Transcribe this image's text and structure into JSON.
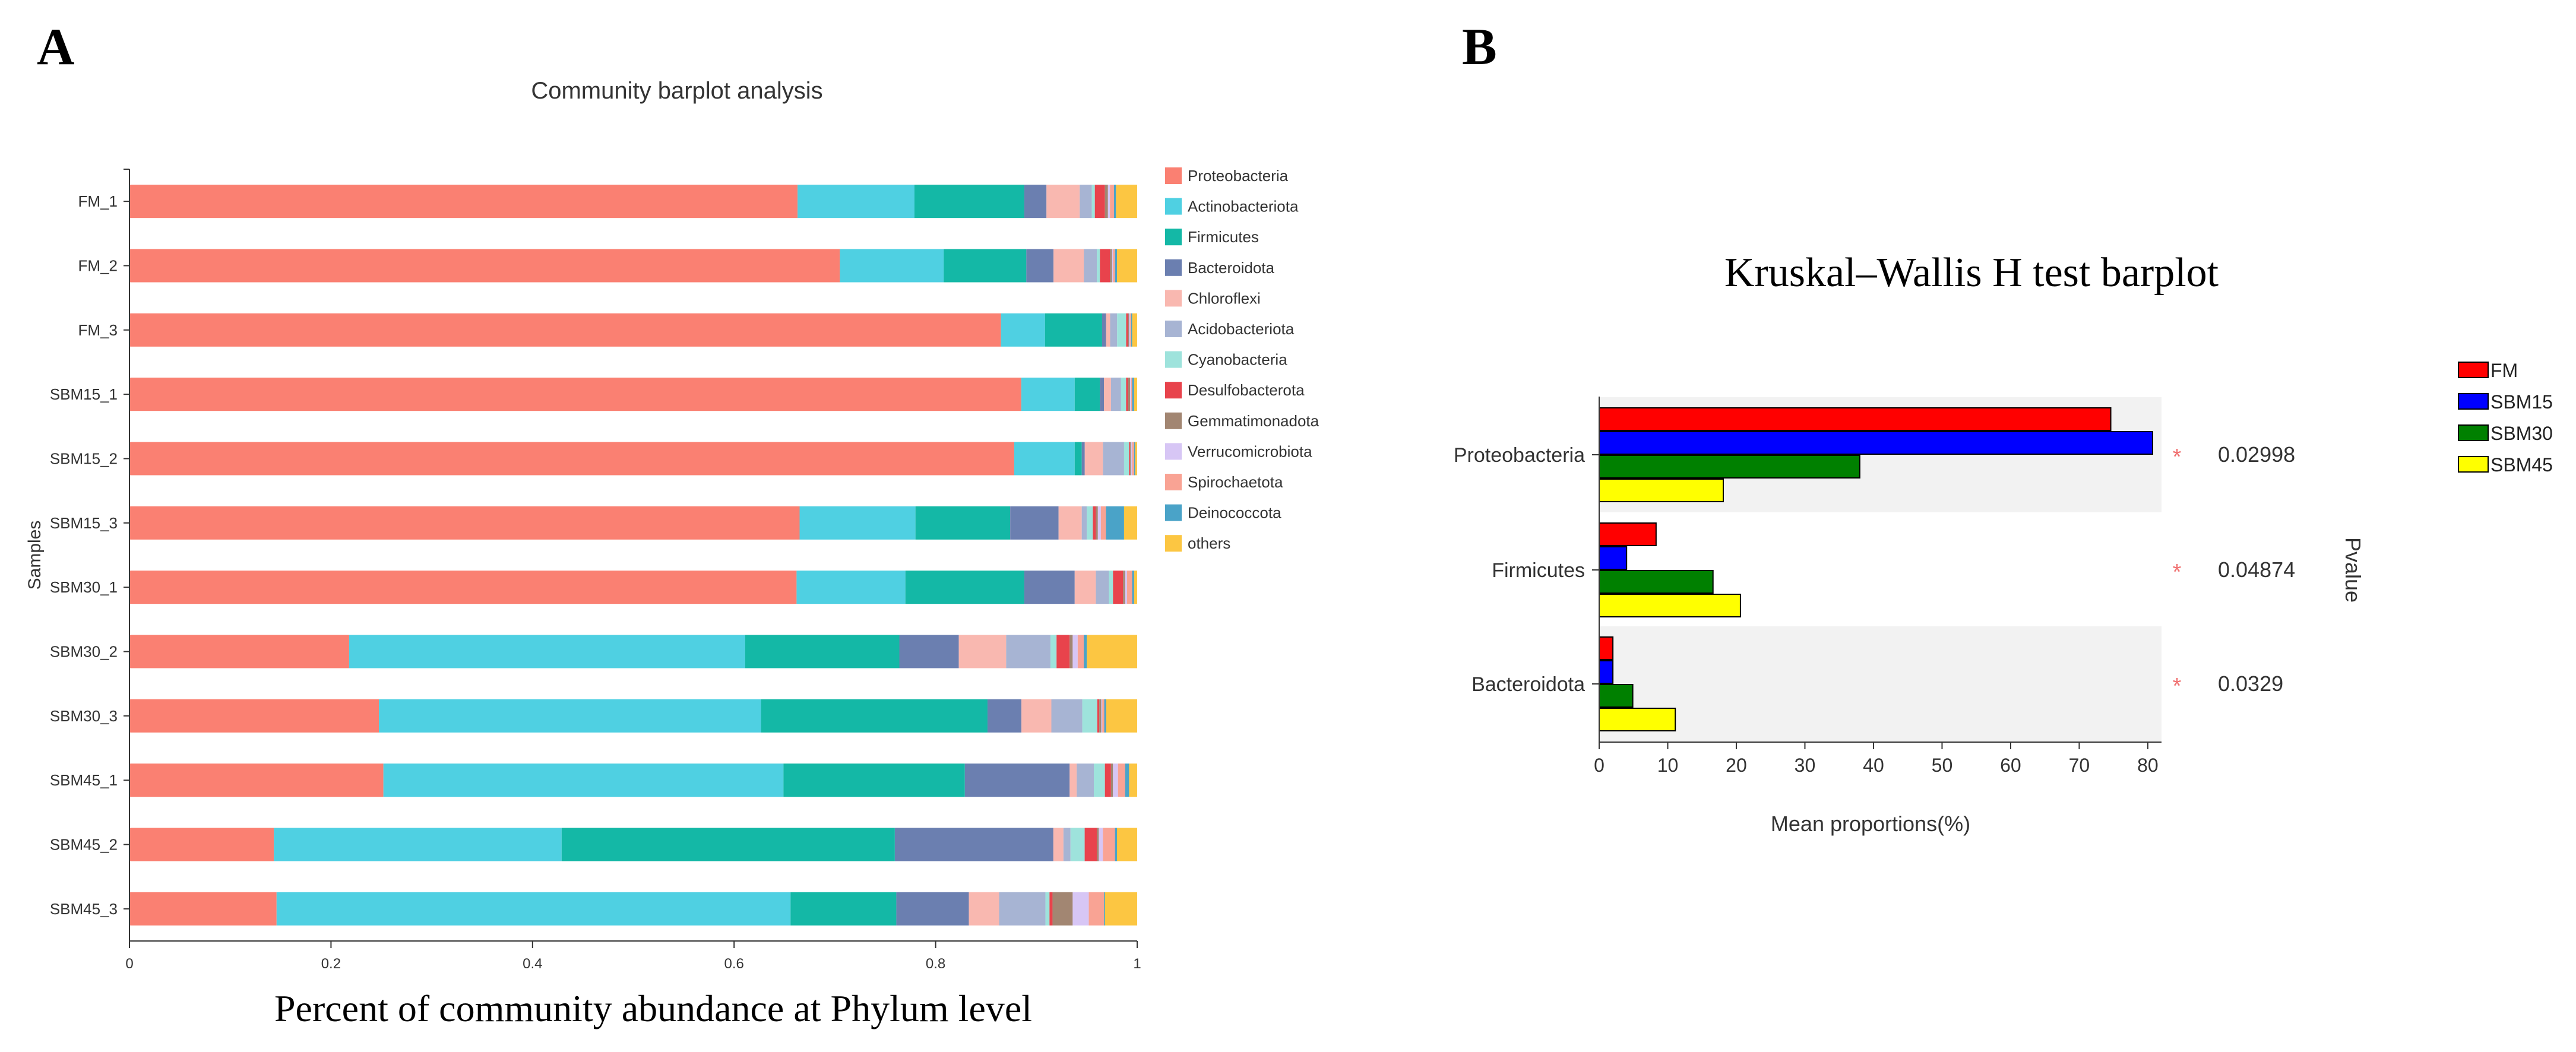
{
  "colors": {
    "Proteobacteria": "#fa8072",
    "Actinobacteriota": "#4fd0e2",
    "Firmicutes": "#14b8a6",
    "Bacteroidota": "#6b7fb0",
    "Chloroflexi": "#f9b8b0",
    "Acidobacteriota": "#a7b4d3",
    "Cyanobacteria": "#9ee3dc",
    "Desulfobacterota": "#e8434c",
    "Gemmatimonadota": "#a28672",
    "Verrucomicrobiota": "#d7c6f5",
    "Spirochaetota": "#f9a394",
    "Deinococcota": "#4aa3c8",
    "others": "#fcc642",
    "FM": "#ff0000",
    "SBM15": "#0000ff",
    "SBM30": "#008000",
    "SBM45": "#ffff00",
    "star": "#f07070"
  },
  "chart_data": [
    {
      "panel_label": "A",
      "type": "bar",
      "orientation": "horizontal",
      "stacked": true,
      "title": "Community barplot analysis",
      "xlabel": "Percent of community abundance at Phylum level",
      "ylabel": "Samples",
      "xlim": [
        0,
        1
      ],
      "xticks": [
        "0",
        "0.2",
        "0.4",
        "0.6",
        "0.8",
        "1"
      ],
      "legend_position": "right",
      "categories": [
        "FM_1",
        "FM_2",
        "FM_3",
        "SBM15_1",
        "SBM15_2",
        "SBM15_3",
        "SBM30_1",
        "SBM30_2",
        "SBM30_3",
        "SBM45_1",
        "SBM45_2",
        "SBM45_3"
      ],
      "series": [
        {
          "name": "Proteobacteria",
          "values": [
            0.663,
            0.705,
            0.87,
            0.885,
            0.878,
            0.665,
            0.662,
            0.218,
            0.25,
            0.252,
            0.143,
            0.146
          ]
        },
        {
          "name": "Actinobacteriota",
          "values": [
            0.116,
            0.103,
            0.044,
            0.053,
            0.06,
            0.115,
            0.108,
            0.393,
            0.383,
            0.397,
            0.285,
            0.51
          ]
        },
        {
          "name": "Firmicutes",
          "values": [
            0.109,
            0.082,
            0.057,
            0.025,
            0.007,
            0.094,
            0.118,
            0.153,
            0.227,
            0.18,
            0.33,
            0.105
          ]
        },
        {
          "name": "Bacteroidota",
          "values": [
            0.022,
            0.027,
            0.004,
            0.004,
            0.003,
            0.048,
            0.05,
            0.059,
            0.034,
            0.104,
            0.157,
            0.072
          ]
        },
        {
          "name": "Chloroflexi",
          "values": [
            0.033,
            0.03,
            0.004,
            0.007,
            0.018,
            0.023,
            0.021,
            0.047,
            0.03,
            0.007,
            0.01,
            0.03
          ]
        },
        {
          "name": "Acidobacteriota",
          "values": [
            0.012,
            0.013,
            0.007,
            0.01,
            0.021,
            0.005,
            0.013,
            0.044,
            0.031,
            0.017,
            0.007,
            0.046
          ]
        },
        {
          "name": "Cyanobacteria",
          "values": [
            0.003,
            0.003,
            0.009,
            0.005,
            0.005,
            0.006,
            0.004,
            0.006,
            0.015,
            0.011,
            0.014,
            0.004
          ]
        },
        {
          "name": "Desulfobacterota",
          "values": [
            0.01,
            0.01,
            0.002,
            0.002,
            0.001,
            0.003,
            0.01,
            0.013,
            0.002,
            0.006,
            0.012,
            0.003
          ]
        },
        {
          "name": "Gemmatimonadota",
          "values": [
            0.003,
            0.002,
            0.001,
            0.002,
            0.001,
            0.002,
            0.002,
            0.003,
            0.002,
            0.002,
            0.002,
            0.02
          ]
        },
        {
          "name": "Verrucomicrobiota",
          "values": [
            0.002,
            0.001,
            0.001,
            0.001,
            0.001,
            0.003,
            0.002,
            0.005,
            0.001,
            0.005,
            0.004,
            0.016
          ]
        },
        {
          "name": "Spirochaetota",
          "values": [
            0.004,
            0.002,
            0.001,
            0.001,
            0.002,
            0.005,
            0.005,
            0.006,
            0.002,
            0.007,
            0.012,
            0.015
          ]
        },
        {
          "name": "Deinococcota",
          "values": [
            0.002,
            0.002,
            0.001,
            0.002,
            0.001,
            0.018,
            0.002,
            0.003,
            0.002,
            0.004,
            0.002,
            0.001
          ]
        },
        {
          "name": "others",
          "values": [
            0.021,
            0.02,
            0.005,
            0.003,
            0.002,
            0.013,
            0.003,
            0.05,
            0.031,
            0.008,
            0.02,
            0.032
          ]
        }
      ]
    },
    {
      "panel_label": "B",
      "type": "bar",
      "orientation": "horizontal",
      "title": "Kruskal–Wallis H test barplot",
      "xlabel": "Mean proportions(%)",
      "right_label": "Pvalue",
      "xlim": [
        0,
        82
      ],
      "xticks": [
        "0",
        "10",
        "20",
        "30",
        "40",
        "50",
        "60",
        "70",
        "80"
      ],
      "legend_position": "top-right",
      "categories": [
        "Proteobacteria",
        "Firmicutes",
        "Bacteroidota"
      ],
      "series": [
        {
          "name": "FM",
          "values": [
            74.6,
            8.3,
            2.0
          ]
        },
        {
          "name": "SBM15",
          "values": [
            80.7,
            4.0,
            2.0
          ]
        },
        {
          "name": "SBM30",
          "values": [
            38.0,
            16.6,
            4.9
          ]
        },
        {
          "name": "SBM45",
          "values": [
            18.1,
            20.6,
            11.1
          ]
        }
      ],
      "significance": [
        "*",
        "*",
        "*"
      ],
      "pvalues": [
        "0.02998",
        "0.04874",
        "0.0329"
      ]
    }
  ]
}
